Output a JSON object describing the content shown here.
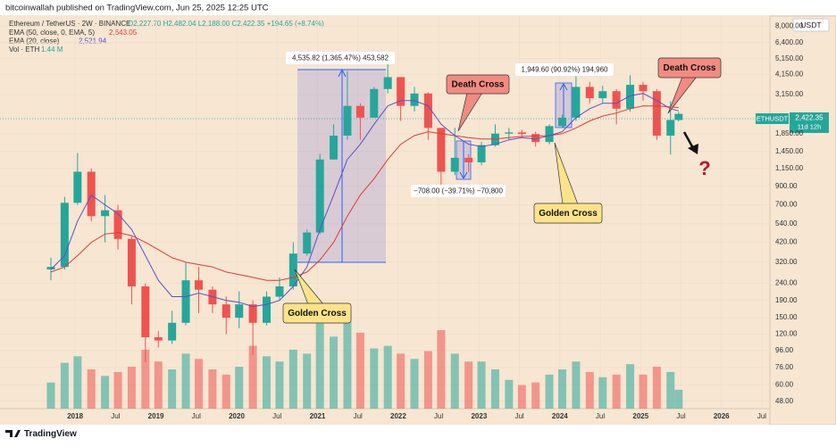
{
  "header": {
    "published": "bitcoinwallah published on TradingView.com, Jun 25, 2025 12:25 UTC",
    "symbol": "Ethereum / TetherUS · 2W · BINANCE",
    "ohlc": "O2,227.70 H2,482.04 L2,188.00 C2,422.35 +194.65 (+8.74%)",
    "currency": "USDT",
    "footer": "TradingView"
  },
  "annotations": {
    "measure_1": "4,535.82 (1,365.47%) 453,582",
    "measure_2": "−708.00 (−39.71%) −70,800",
    "measure_3": "1,949.60 (90.92%) 194,960",
    "death_cross_1": "Death Cross",
    "death_cross_2": "Death Cross",
    "golden_cross_1": "Golden Cross",
    "golden_cross_2": "Golden Cross",
    "question": "?"
  },
  "price_label": {
    "symbol": "ETHUSDT",
    "price": "2,422.35",
    "countdown": "11d 12h"
  },
  "chart_data": {
    "type": "candlestick",
    "log_scale": true,
    "up_color": "#26a69a",
    "down_color": "#ef5350",
    "x": [
      2017.7,
      2017.87,
      2018.03,
      2018.2,
      2018.37,
      2018.53,
      2018.7,
      2018.87,
      2019.03,
      2019.2,
      2019.37,
      2019.53,
      2019.7,
      2019.87,
      2020.03,
      2020.2,
      2020.37,
      2020.53,
      2020.7,
      2020.87,
      2021.03,
      2021.2,
      2021.37,
      2021.53,
      2021.7,
      2021.87,
      2022.03,
      2022.2,
      2022.37,
      2022.53,
      2022.7,
      2022.87,
      2023.03,
      2023.2,
      2023.37,
      2023.53,
      2023.7,
      2023.87,
      2024.03,
      2024.2,
      2024.37,
      2024.53,
      2024.7,
      2024.87,
      2025.03,
      2025.2,
      2025.37,
      2025.47
    ],
    "open": [
      290,
      300,
      720,
      1100,
      600,
      650,
      440,
      230,
      115,
      110,
      140,
      250,
      220,
      180,
      150,
      180,
      140,
      200,
      230,
      360,
      480,
      1300,
      1800,
      2700,
      2300,
      3400,
      4000,
      2700,
      3200,
      2000,
      1100,
      1330,
      1250,
      1580,
      1850,
      1880,
      1840,
      1650,
      2050,
      2300,
      3500,
      3000,
      3300,
      2600,
      3600,
      3300,
      1800,
      2227.7
    ],
    "high": [
      340,
      780,
      1420,
      1150,
      800,
      700,
      460,
      240,
      125,
      165,
      320,
      300,
      230,
      200,
      215,
      190,
      215,
      260,
      420,
      500,
      1400,
      2100,
      4350,
      2800,
      3500,
      4860,
      4000,
      3500,
      3250,
      2000,
      2000,
      1400,
      1650,
      2100,
      2000,
      1950,
      1900,
      2100,
      2400,
      4050,
      3750,
      3550,
      3400,
      4100,
      3750,
      3400,
      2880,
      2482.04
    ],
    "low": [
      250,
      290,
      700,
      560,
      420,
      380,
      180,
      82,
      100,
      105,
      135,
      160,
      160,
      120,
      130,
      90,
      135,
      190,
      220,
      350,
      470,
      1300,
      1700,
      1700,
      2300,
      3200,
      2200,
      2500,
      1700,
      880,
      1050,
      1100,
      1200,
      1550,
      1700,
      1750,
      1550,
      1600,
      2000,
      2200,
      2800,
      2800,
      2100,
      2500,
      2900,
      1700,
      1390,
      2188
    ],
    "close": [
      300,
      720,
      1100,
      600,
      650,
      440,
      230,
      115,
      110,
      140,
      250,
      220,
      180,
      150,
      180,
      140,
      200,
      230,
      360,
      480,
      1300,
      1800,
      2700,
      2300,
      3400,
      4000,
      2700,
      3200,
      2000,
      1100,
      1330,
      1250,
      1580,
      1850,
      1880,
      1840,
      1650,
      2050,
      2300,
      3500,
      3000,
      3300,
      2600,
      3600,
      3300,
      1800,
      2230,
      2422.35
    ],
    "volume": [
      2.0,
      3.5,
      4.0,
      3.0,
      2.5,
      2.8,
      3.2,
      4.5,
      3.6,
      3.0,
      4.2,
      3.8,
      3.0,
      2.6,
      3.2,
      4.8,
      4.0,
      3.6,
      4.5,
      4.2,
      6.5,
      5.5,
      7.5,
      5.8,
      4.6,
      4.8,
      4.2,
      3.8,
      4.4,
      6.0,
      4.2,
      3.6,
      3.6,
      3.0,
      2.2,
      1.8,
      2.0,
      2.6,
      3.0,
      3.6,
      2.8,
      2.4,
      2.6,
      3.4,
      2.6,
      3.2,
      2.8,
      1.44
    ],
    "volume_name": "Vol · ETH",
    "volume_value_label": "1.44 M",
    "volume_color": "#26a69a",
    "lines": [
      {
        "name": "EMA (50, close, 0, EMA, 5)",
        "color": "#e53935",
        "value_label": "2,643.05",
        "values": [
          280,
          300,
          350,
          420,
          470,
          480,
          460,
          420,
          380,
          340,
          320,
          310,
          300,
          280,
          270,
          260,
          250,
          250,
          260,
          280,
          330,
          420,
          600,
          800,
          1000,
          1300,
          1600,
          1800,
          1900,
          1850,
          1800,
          1750,
          1720,
          1720,
          1750,
          1780,
          1790,
          1800,
          1850,
          2000,
          2200,
          2350,
          2450,
          2600,
          2700,
          2700,
          2660,
          2643.05
        ]
      },
      {
        "name": "EMA (20, close)",
        "color": "#5c4fc9",
        "value_label": "2,521.94",
        "values": [
          290,
          350,
          560,
          800,
          700,
          620,
          500,
          350,
          250,
          200,
          200,
          210,
          200,
          190,
          185,
          175,
          180,
          190,
          230,
          300,
          500,
          800,
          1300,
          1600,
          2100,
          2700,
          2900,
          2900,
          2700,
          2100,
          1800,
          1600,
          1550,
          1600,
          1700,
          1750,
          1720,
          1800,
          1900,
          2300,
          2600,
          2800,
          2800,
          3100,
          3200,
          2900,
          2600,
          2521.94
        ]
      }
    ],
    "xlim": [
      2017.07,
      2026.6
    ],
    "xticks": [
      2018,
      {
        "value": 2018.5,
        "label": "Jul"
      },
      2019,
      {
        "value": 2019.5,
        "label": "Jul"
      },
      2020,
      {
        "value": 2020.5,
        "label": "Jul"
      },
      2021,
      {
        "value": 2021.5,
        "label": "Jul"
      },
      2022,
      {
        "value": 2022.5,
        "label": "Jul"
      },
      2023,
      {
        "value": 2023.5,
        "label": "Jul"
      },
      2024,
      {
        "value": 2024.5,
        "label": "Jul"
      },
      2025,
      {
        "value": 2025.5,
        "label": "Jul"
      },
      2026,
      {
        "value": 2026.5,
        "label": "Jul"
      }
    ],
    "ylim": [
      43.4,
      9200
    ],
    "yticks": [
      {
        "value": 8000,
        "label": "8,000.00"
      },
      {
        "value": 6400,
        "label": "6,400.00"
      },
      {
        "value": 5150,
        "label": "5,150.00"
      },
      {
        "value": 4150,
        "label": "4,150.00"
      },
      {
        "value": 3150,
        "label": "3,150.00"
      },
      {
        "value": 1850,
        "label": "1,850.00"
      },
      {
        "value": 1450,
        "label": "1,450.00"
      },
      {
        "value": 1150,
        "label": "1,150.00"
      },
      {
        "value": 900,
        "label": "900.00"
      },
      {
        "value": 700,
        "label": "700.00"
      },
      {
        "value": 540,
        "label": "540.00"
      },
      {
        "value": 420,
        "label": "420.00"
      },
      {
        "value": 320,
        "label": "320.00"
      },
      {
        "value": 240,
        "label": "240.00"
      },
      {
        "value": 190,
        "label": "190.00"
      },
      {
        "value": 150,
        "label": "150.00"
      },
      {
        "value": 120,
        "label": "120.00"
      },
      {
        "value": 96,
        "label": "96.00"
      },
      {
        "value": 76,
        "label": "76.00"
      },
      {
        "value": 60,
        "label": "60.00"
      },
      {
        "value": 48,
        "label": "48.00"
      }
    ]
  }
}
